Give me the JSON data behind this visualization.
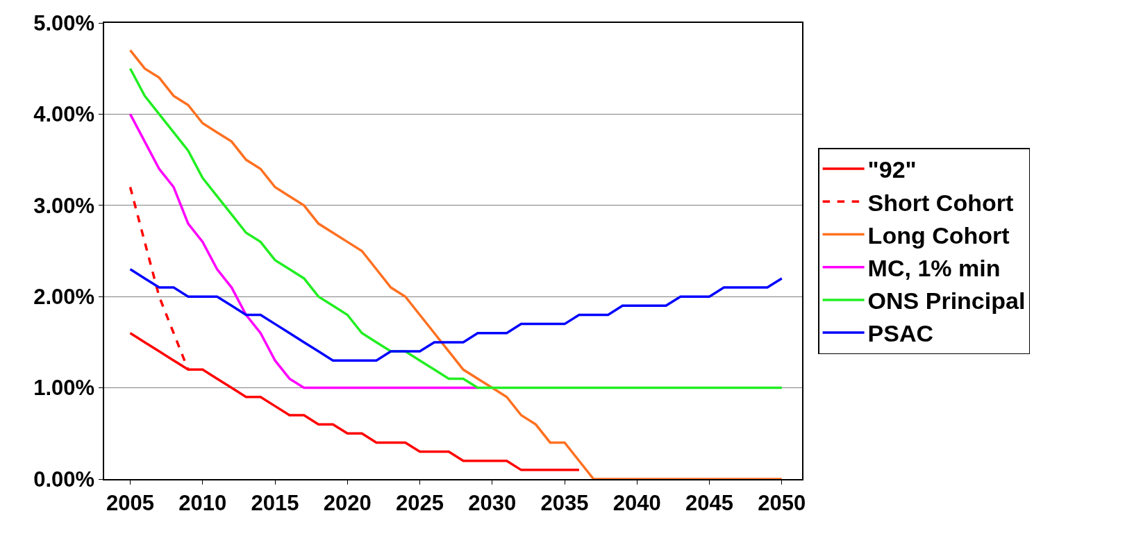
{
  "chart_data": {
    "type": "line",
    "x": [
      2005,
      2006,
      2007,
      2008,
      2009,
      2010,
      2011,
      2012,
      2013,
      2014,
      2015,
      2016,
      2017,
      2018,
      2019,
      2020,
      2021,
      2022,
      2023,
      2024,
      2025,
      2026,
      2027,
      2028,
      2029,
      2030,
      2031,
      2032,
      2033,
      2034,
      2035,
      2036,
      2037,
      2038,
      2039,
      2040,
      2041,
      2042,
      2043,
      2044,
      2045,
      2046,
      2047,
      2048,
      2049,
      2050
    ],
    "series": [
      {
        "name": "\"92\"",
        "color": "#ff0000",
        "line_style": "solid",
        "values": [
          1.6,
          1.5,
          1.4,
          1.3,
          1.2,
          1.2,
          1.1,
          1.0,
          0.9,
          0.9,
          0.8,
          0.7,
          0.7,
          0.6,
          0.6,
          0.5,
          0.5,
          0.4,
          0.4,
          0.4,
          0.3,
          0.3,
          0.3,
          0.2,
          0.2,
          0.2,
          0.2,
          0.1,
          0.1,
          0.1,
          0.1,
          0.1,
          null,
          null,
          null,
          null,
          null,
          null,
          null,
          null,
          null,
          null,
          null,
          null,
          null,
          null
        ]
      },
      {
        "name": "Short Cohort",
        "color": "#ff0000",
        "line_style": "dashed",
        "x": [
          2005,
          2006,
          2007,
          2008,
          2009
        ],
        "values": [
          3.2,
          2.6,
          2.0,
          1.6,
          1.2
        ]
      },
      {
        "name": "Long Cohort",
        "color": "#ff7020",
        "line_style": "solid",
        "values": [
          4.7,
          4.5,
          4.4,
          4.2,
          4.1,
          3.9,
          3.8,
          3.7,
          3.5,
          3.4,
          3.2,
          3.1,
          3.0,
          2.8,
          2.7,
          2.6,
          2.5,
          2.3,
          2.1,
          2.0,
          1.8,
          1.6,
          1.4,
          1.2,
          1.1,
          1.0,
          0.9,
          0.7,
          0.6,
          0.4,
          0.4,
          0.2,
          0,
          0,
          0,
          0,
          0,
          0,
          0,
          0,
          0,
          0,
          0,
          0,
          0,
          0
        ]
      },
      {
        "name": "MC, 1% min",
        "color": "#ff00ff",
        "line_style": "solid",
        "x": [
          2005,
          2006,
          2007,
          2008,
          2009,
          2010,
          2011,
          2012,
          2013,
          2014,
          2015,
          2016,
          2017,
          2018,
          2019,
          2020,
          2021,
          2022,
          2023,
          2024,
          2025,
          2026,
          2027,
          2028,
          2029
        ],
        "values": [
          4.0,
          3.7,
          3.4,
          3.2,
          2.8,
          2.6,
          2.3,
          2.1,
          1.8,
          1.6,
          1.3,
          1.1,
          1.0,
          1.0,
          1.0,
          1.0,
          1.0,
          1.0,
          1.0,
          1.0,
          1.0,
          1.0,
          1.0,
          1.0,
          1.0
        ]
      },
      {
        "name": "ONS Principal",
        "color": "#22ee22",
        "line_style": "solid",
        "values": [
          4.5,
          4.2,
          4.0,
          3.8,
          3.6,
          3.3,
          3.1,
          2.9,
          2.7,
          2.6,
          2.4,
          2.3,
          2.2,
          2.0,
          1.9,
          1.8,
          1.6,
          1.5,
          1.4,
          1.4,
          1.3,
          1.2,
          1.1,
          1.1,
          1.0,
          1.0,
          1.0,
          1.0,
          1.0,
          1.0,
          1.0,
          1.0,
          1.0,
          1.0,
          1.0,
          1.0,
          1.0,
          1.0,
          1.0,
          1.0,
          1.0,
          1.0,
          1.0,
          1.0,
          1.0,
          1.0
        ]
      },
      {
        "name": "PSAC",
        "color": "#0000ff",
        "line_style": "solid",
        "values": [
          2.3,
          2.2,
          2.1,
          2.1,
          2.0,
          2.0,
          2.0,
          1.9,
          1.8,
          1.8,
          1.7,
          1.6,
          1.5,
          1.4,
          1.3,
          1.3,
          1.3,
          1.3,
          1.4,
          1.4,
          1.4,
          1.5,
          1.5,
          1.5,
          1.6,
          1.6,
          1.6,
          1.7,
          1.7,
          1.7,
          1.7,
          1.8,
          1.8,
          1.8,
          1.9,
          1.9,
          1.9,
          1.9,
          2.0,
          2.0,
          2.0,
          2.1,
          2.1,
          2.1,
          2.1,
          2.2
        ]
      }
    ],
    "xlim": [
      2003.2,
      2051.4
    ],
    "xticks": [
      2005,
      2010,
      2015,
      2020,
      2025,
      2030,
      2035,
      2040,
      2045,
      2050
    ],
    "ylim": [
      0,
      5
    ],
    "yticks": [
      {
        "value": 0,
        "label": "0.00%"
      },
      {
        "value": 1,
        "label": "1.00%"
      },
      {
        "value": 2,
        "label": "2.00%"
      },
      {
        "value": 3,
        "label": "3.00%"
      },
      {
        "value": 4,
        "label": "4.00%"
      },
      {
        "value": 5,
        "label": "5.00%"
      }
    ],
    "grid": "y",
    "legend": "right",
    "marker": "none"
  }
}
